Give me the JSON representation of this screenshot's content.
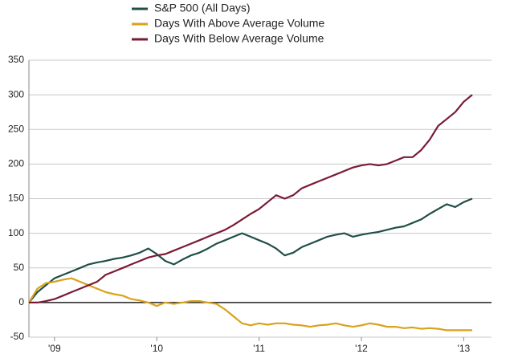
{
  "chart_data": {
    "type": "line",
    "categories": [
      null,
      null,
      null,
      "'09",
      null,
      null,
      null,
      null,
      null,
      null,
      null,
      null,
      null,
      null,
      null,
      "'10",
      null,
      null,
      null,
      null,
      null,
      null,
      null,
      null,
      null,
      null,
      null,
      "'11",
      null,
      null,
      null,
      null,
      null,
      null,
      null,
      null,
      null,
      null,
      null,
      "'12",
      null,
      null,
      null,
      null,
      null,
      null,
      null,
      null,
      null,
      null,
      null,
      "'13",
      null
    ],
    "series": [
      {
        "name": "S&P 500 (All Days)",
        "color": "#1f4f47",
        "values": [
          0,
          15,
          25,
          35,
          40,
          45,
          50,
          55,
          58,
          60,
          63,
          65,
          68,
          72,
          78,
          70,
          60,
          55,
          62,
          68,
          72,
          78,
          85,
          90,
          95,
          100,
          95,
          90,
          85,
          78,
          68,
          72,
          80,
          85,
          90,
          95,
          98,
          100,
          95,
          98,
          100,
          102,
          105,
          108,
          110,
          115,
          120,
          128,
          135,
          142,
          138,
          145,
          150
        ]
      },
      {
        "name": "Days With Above Average Volume",
        "color": "#d9a21b",
        "values": [
          0,
          20,
          28,
          30,
          33,
          35,
          30,
          25,
          20,
          15,
          12,
          10,
          5,
          3,
          0,
          -5,
          0,
          -2,
          0,
          2,
          2,
          0,
          -2,
          -10,
          -20,
          -30,
          -33,
          -30,
          -32,
          -30,
          -30,
          -32,
          -33,
          -35,
          -33,
          -32,
          -30,
          -33,
          -35,
          -33,
          -30,
          -32,
          -35,
          -35,
          -37,
          -36,
          -38,
          -37,
          -38,
          -40,
          -40,
          -40,
          -40
        ]
      },
      {
        "name": "Days With Below Average Volume",
        "color": "#7a1b35",
        "values": [
          0,
          0,
          2,
          5,
          10,
          15,
          20,
          25,
          30,
          40,
          45,
          50,
          55,
          60,
          65,
          68,
          70,
          75,
          80,
          85,
          90,
          95,
          100,
          105,
          112,
          120,
          128,
          135,
          145,
          155,
          150,
          155,
          165,
          170,
          175,
          180,
          185,
          190,
          195,
          198,
          200,
          198,
          200,
          205,
          210,
          210,
          220,
          235,
          255,
          265,
          275,
          290,
          300
        ]
      }
    ],
    "ylim": [
      -50,
      350
    ],
    "yticks": [
      -50,
      0,
      50,
      100,
      150,
      200,
      250,
      300,
      350
    ],
    "grid": true,
    "legend": "top-left"
  }
}
